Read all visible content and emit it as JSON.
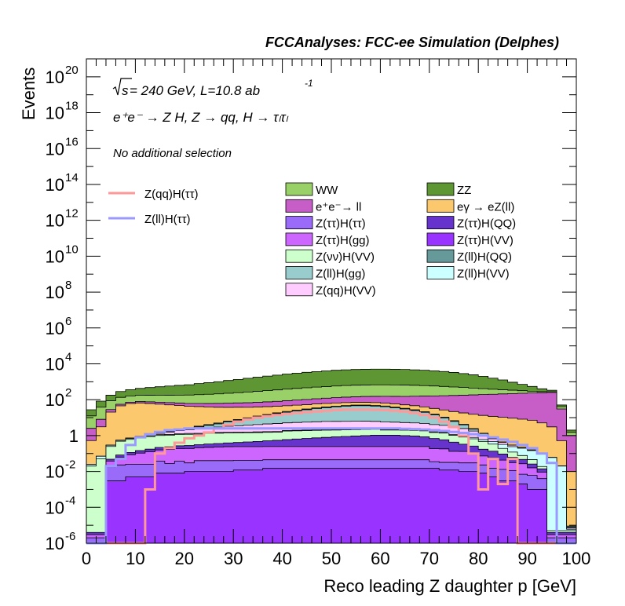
{
  "chart_data": {
    "type": "area",
    "title": "FCCAnalyses: FCC-ee Simulation (Delphes)",
    "xlabel": "Reco leading Z daughter p [GeV]",
    "ylabel": "Events",
    "xlim": [
      0,
      100
    ],
    "ylim": [
      1e-06,
      1e+21
    ],
    "yscale": "log",
    "grid": false,
    "x_ticks": [
      "0",
      "10",
      "20",
      "30",
      "40",
      "50",
      "60",
      "70",
      "80",
      "90",
      "100"
    ],
    "y_ticks": [
      {
        "value": 1e-06,
        "base": "10",
        "exp": "-6"
      },
      {
        "value": 0.0001,
        "base": "10",
        "exp": "-4"
      },
      {
        "value": 0.01,
        "base": "10",
        "exp": "-2"
      },
      {
        "value": 1,
        "base": "1",
        "exp": ""
      },
      {
        "value": 100.0,
        "base": "10",
        "exp": "2"
      },
      {
        "value": 10000.0,
        "base": "10",
        "exp": "4"
      },
      {
        "value": 1000000.0,
        "base": "10",
        "exp": "6"
      },
      {
        "value": 100000000.0,
        "base": "10",
        "exp": "8"
      },
      {
        "value": 10000000000.0,
        "base": "10",
        "exp": "10"
      },
      {
        "value": 1000000000000.0,
        "base": "10",
        "exp": "12"
      },
      {
        "value": 100000000000000.0,
        "base": "10",
        "exp": "14"
      },
      {
        "value": 1e+16,
        "base": "10",
        "exp": "16"
      },
      {
        "value": 1e+18,
        "base": "10",
        "exp": "18"
      },
      {
        "value": 1e+20,
        "base": "10",
        "exp": "20"
      }
    ],
    "annotations": {
      "sqrt_s": "s",
      "energy": " = 240 GeV, L=10.8 ab",
      "lumi_exp": "-1",
      "process": "e⁺e⁻ → Z H, Z → qq, H → τₗτₗ",
      "selection": "No additional selection"
    },
    "legend_position": "top-center",
    "stack_legend": [
      {
        "label": "WW",
        "color": "#99d067"
      },
      {
        "label": "ZZ",
        "color": "#5e9633"
      },
      {
        "label": "e⁺e⁻→ ll",
        "color": "#c75ec8"
      },
      {
        "label": "eγ → eZ(ll)",
        "color": "#fbc86e"
      },
      {
        "label": "Z(ττ)H(ττ)",
        "color": "#9a6af9"
      },
      {
        "label": "Z(ττ)H(QQ)",
        "color": "#6633cc"
      },
      {
        "label": "Z(ττ)H(gg)",
        "color": "#cc66ff"
      },
      {
        "label": "Z(ττ)H(VV)",
        "color": "#9933ff"
      },
      {
        "label": "Z(νν)H(VV)",
        "color": "#ccffcc"
      },
      {
        "label": "Z(ll)H(QQ)",
        "color": "#669999"
      },
      {
        "label": "Z(ll)H(gg)",
        "color": "#99cccc"
      },
      {
        "label": "Z(ll)H(VV)",
        "color": "#ccffff"
      },
      {
        "label": "Z(qq)H(VV)",
        "color": "#ffccff"
      }
    ],
    "line_legend": [
      {
        "label": "Z(qq)H(ττ)",
        "color": "#ff9999"
      },
      {
        "label": "Z(ll)H(ττ)",
        "color": "#9999ff"
      }
    ],
    "bin_width": 2,
    "x_bins": [
      0,
      2,
      4,
      6,
      8,
      10,
      12,
      14,
      16,
      18,
      20,
      22,
      24,
      26,
      28,
      30,
      32,
      34,
      36,
      38,
      40,
      42,
      44,
      46,
      48,
      50,
      52,
      54,
      56,
      58,
      60,
      62,
      64,
      66,
      68,
      70,
      72,
      74,
      76,
      78,
      80,
      82,
      84,
      86,
      88,
      90,
      92,
      94,
      96,
      98
    ],
    "stack_series": [
      {
        "name": "Z(ττ)H(VV)",
        "color": "#9933ff",
        "values": [
          1e-06,
          1e-06,
          0.003,
          0.003,
          0.005,
          0.005,
          0.005,
          0.008,
          0.008,
          0.008,
          0.01,
          0.01,
          0.01,
          0.01,
          0.01,
          0.012,
          0.012,
          0.012,
          0.015,
          0.015,
          0.015,
          0.015,
          0.015,
          0.015,
          0.015,
          0.015,
          0.015,
          0.015,
          0.015,
          0.015,
          0.015,
          0.015,
          0.015,
          0.015,
          0.015,
          0.015,
          0.012,
          0.012,
          0.01,
          0.01,
          0.008,
          0.005,
          0.003,
          0.003,
          0.002,
          0.001,
          0.001,
          1e-06,
          1e-06,
          1e-06
        ]
      },
      {
        "name": "Z(ττ)H(ττ)",
        "color": "#9a6af9",
        "values": [
          1e-06,
          1e-06,
          0.015,
          0.02,
          0.02,
          0.02,
          0.02,
          0.03,
          0.02,
          0.03,
          0.02,
          0.03,
          0.03,
          0.03,
          0.03,
          0.03,
          0.03,
          0.03,
          0.03,
          0.03,
          0.03,
          0.03,
          0.03,
          0.03,
          0.03,
          0.03,
          0.03,
          0.03,
          0.03,
          0.03,
          0.03,
          0.03,
          0.03,
          0.03,
          0.03,
          0.02,
          0.02,
          0.02,
          0.02,
          0.02,
          0.015,
          0.01,
          0.01,
          0.008,
          0.005,
          0.005,
          0.003,
          1e-06,
          1e-06,
          1e-06
        ]
      },
      {
        "name": "Z(ττ)H(gg)",
        "color": "#cc66ff",
        "values": [
          1e-06,
          1e-06,
          0.02,
          0.04,
          0.06,
          0.08,
          0.1,
          0.12,
          0.14,
          0.15,
          0.16,
          0.17,
          0.18,
          0.19,
          0.2,
          0.2,
          0.2,
          0.2,
          0.2,
          0.2,
          0.2,
          0.2,
          0.2,
          0.2,
          0.2,
          0.2,
          0.2,
          0.2,
          0.2,
          0.2,
          0.2,
          0.2,
          0.2,
          0.2,
          0.2,
          0.15,
          0.15,
          0.1,
          0.1,
          0.08,
          0.05,
          0.04,
          0.03,
          0.02,
          0.02,
          0.01,
          0.005,
          1e-06,
          1e-06,
          1e-06
        ]
      },
      {
        "name": "Z(ττ)H(QQ)",
        "color": "#6633cc",
        "values": [
          1e-06,
          1e-06,
          0.01,
          0.02,
          0.03,
          0.04,
          0.05,
          0.06,
          0.07,
          0.08,
          0.09,
          0.1,
          0.12,
          0.13,
          0.15,
          0.17,
          0.2,
          0.23,
          0.27,
          0.3,
          0.35,
          0.4,
          0.45,
          0.5,
          0.55,
          0.6,
          0.65,
          0.7,
          0.75,
          0.8,
          0.8,
          0.8,
          0.75,
          0.7,
          0.6,
          0.5,
          0.4,
          0.3,
          0.2,
          0.15,
          0.1,
          0.08,
          0.05,
          0.03,
          0.02,
          0.01,
          0.005,
          1e-06,
          1e-06,
          1e-06
        ]
      },
      {
        "name": "Z(νν)H(VV)",
        "color": "#ccffcc",
        "values": [
          0.02,
          0.05,
          0.2,
          0.4,
          0.5,
          0.6,
          0.7,
          0.8,
          0.8,
          0.9,
          0.9,
          0.9,
          1,
          1,
          1,
          1,
          1,
          1,
          1,
          1,
          1.2,
          1.2,
          1.2,
          1.2,
          1.2,
          1.2,
          1.2,
          1.2,
          1.2,
          1.2,
          1,
          1,
          1,
          1,
          1,
          0.8,
          0.8,
          0.6,
          0.5,
          0.4,
          0.3,
          0.2,
          0.1,
          0.06,
          0.03,
          0.02,
          0.005,
          1e-06,
          1e-06,
          1e-06
        ]
      },
      {
        "name": "Z(ll)H(VV)",
        "color": "#ccffff",
        "values": [
          0.005,
          0.02,
          0.04,
          0.06,
          0.08,
          0.1,
          0.1,
          0.12,
          0.12,
          0.12,
          0.13,
          0.13,
          0.13,
          0.13,
          0.13,
          0.13,
          0.13,
          0.13,
          0.13,
          0.13,
          0.13,
          0.13,
          0.13,
          0.13,
          0.13,
          0.13,
          0.13,
          0.13,
          0.13,
          0.13,
          0.13,
          0.13,
          0.13,
          0.13,
          0.13,
          0.13,
          0.13,
          0.13,
          0.13,
          0.13,
          0.13,
          0.13,
          0.13,
          0.12,
          0.12,
          0.1,
          0.08,
          0.06,
          0.02,
          1e-06
        ]
      },
      {
        "name": "Z(qq)H(VV)",
        "color": "#ffccff",
        "values": [
          1e-06,
          1e-06,
          0.001,
          0.005,
          0.02,
          0.05,
          0.1,
          0.2,
          0.4,
          0.6,
          0.8,
          1,
          1.2,
          1.5,
          1.8,
          2,
          2.2,
          2.5,
          2.8,
          3,
          3.2,
          3.4,
          3.6,
          3.8,
          4,
          4,
          4,
          4,
          4,
          3.8,
          3.6,
          3.4,
          3.2,
          3,
          2.8,
          2.5,
          2.2,
          2,
          1.5,
          1,
          0.5,
          0.2,
          0.1,
          0.05,
          0.02,
          0.01,
          0.003,
          1e-06,
          1e-06,
          1e-06
        ]
      },
      {
        "name": "Z(ll)H(gg)",
        "color": "#99cccc",
        "values": [
          1e-06,
          1e-06,
          0.001,
          0.002,
          0.005,
          0.01,
          0.02,
          0.05,
          0.1,
          0.2,
          0.4,
          0.7,
          1,
          1.5,
          2.5,
          3.5,
          5,
          7,
          9,
          12,
          15,
          18,
          22,
          26,
          30,
          34,
          37,
          40,
          40,
          38,
          35,
          30,
          25,
          20,
          15,
          10,
          6,
          3,
          1.5,
          0.5,
          0.2,
          0.05,
          0.01,
          0.005,
          0.001,
          1e-06,
          1e-06,
          1e-06,
          1e-06,
          1e-06
        ]
      },
      {
        "name": "Z(ll)H(QQ)",
        "color": "#669999",
        "values": [
          1e-06,
          1e-06,
          0.001,
          0.002,
          0.005,
          0.01,
          0.02,
          0.05,
          0.1,
          0.15,
          0.2,
          0.3,
          0.4,
          0.5,
          0.6,
          0.8,
          1,
          1.2,
          1.5,
          1.8,
          2,
          2.3,
          2.6,
          3,
          3.3,
          3.5,
          3.7,
          3.8,
          3.8,
          3.6,
          3.3,
          3,
          2.6,
          2.2,
          1.8,
          1.4,
          1,
          0.6,
          0.3,
          0.15,
          0.05,
          0.02,
          0.005,
          0.001,
          1e-06,
          1e-06,
          1e-06,
          1e-06,
          1e-06,
          1e-06
        ]
      },
      {
        "name": "eγ → eZ(ll)",
        "color": "#fbc86e",
        "values": [
          0.5,
          3,
          20,
          45,
          60,
          65,
          60,
          55,
          50,
          45,
          40,
          38,
          35,
          33,
          31,
          30,
          28,
          27,
          26,
          25,
          24,
          24,
          23,
          23,
          22,
          22,
          22,
          21,
          21,
          21,
          20,
          20,
          19,
          19,
          18,
          17,
          16,
          15,
          14,
          13,
          12,
          11,
          10,
          9,
          8,
          7,
          5,
          3,
          0.5,
          0.01
        ]
      },
      {
        "name": "e⁺e⁻→ ll",
        "color": "#c75ec8",
        "values": [
          2,
          5,
          8,
          10,
          12,
          14,
          15,
          16,
          17,
          18,
          19,
          20,
          22,
          24,
          26,
          28,
          30,
          32,
          35,
          38,
          42,
          46,
          50,
          55,
          60,
          65,
          70,
          75,
          80,
          85,
          90,
          95,
          100,
          110,
          120,
          130,
          140,
          150,
          160,
          170,
          180,
          190,
          200,
          210,
          220,
          230,
          240,
          250,
          30,
          1
        ]
      },
      {
        "name": "WW",
        "color": "#99d067",
        "values": [
          10,
          30,
          60,
          80,
          90,
          95,
          100,
          105,
          110,
          115,
          120,
          130,
          140,
          150,
          165,
          180,
          200,
          220,
          245,
          270,
          300,
          330,
          360,
          390,
          420,
          450,
          480,
          500,
          510,
          520,
          520,
          510,
          500,
          480,
          450,
          420,
          380,
          340,
          300,
          260,
          220,
          180,
          150,
          120,
          90,
          60,
          40,
          25,
          10,
          0.5
        ]
      },
      {
        "name": "ZZ",
        "color": "#5e9633",
        "values": [
          15,
          45,
          90,
          150,
          200,
          250,
          300,
          350,
          400,
          450,
          500,
          600,
          700,
          800,
          950,
          1100,
          1300,
          1500,
          1750,
          2000,
          2300,
          2600,
          2900,
          3200,
          3500,
          3800,
          4000,
          4200,
          4300,
          4400,
          4400,
          4300,
          4200,
          4000,
          3800,
          3500,
          3200,
          2800,
          2400,
          2000,
          1600,
          1200,
          900,
          600,
          400,
          250,
          120,
          60,
          10,
          0.5
        ]
      }
    ],
    "line_series": [
      {
        "name": "Z(qq)H(ττ)",
        "color": "#ff9999",
        "values": [
          1e-06,
          1e-06,
          1e-06,
          1e-06,
          1e-06,
          1e-06,
          0.001,
          0.1,
          0.2,
          0.4,
          0.7,
          1,
          1.5,
          2.5,
          4,
          6,
          8,
          10,
          12,
          14,
          16,
          18,
          20,
          22,
          24,
          26,
          28,
          28,
          28,
          27,
          26,
          24,
          22,
          18,
          14,
          10,
          6,
          3,
          1,
          0.1,
          0.001,
          0.05,
          0.002,
          0.05,
          1e-06,
          1e-06,
          1e-06,
          1e-06,
          1e-06,
          1e-06
        ]
      },
      {
        "name": "Z(ll)H(ττ)",
        "color": "#9999ff",
        "values": [
          1e-06,
          1e-06,
          0.02,
          0.05,
          0.3,
          0.8,
          1.2,
          1.6,
          2,
          2.2,
          2.5,
          2.5,
          2.5,
          2.5,
          2.5,
          2.5,
          2.5,
          2.5,
          2.5,
          2.5,
          2.5,
          2.5,
          2.5,
          2.5,
          2.5,
          2.5,
          2.5,
          2.5,
          2.5,
          2.5,
          2.5,
          2.5,
          2.4,
          2.3,
          2.2,
          2,
          1.8,
          1.6,
          1.4,
          1.2,
          1,
          0.8,
          0.6,
          0.45,
          0.3,
          0.2,
          0.1,
          0.03,
          1e-06,
          1e-06
        ]
      }
    ]
  }
}
